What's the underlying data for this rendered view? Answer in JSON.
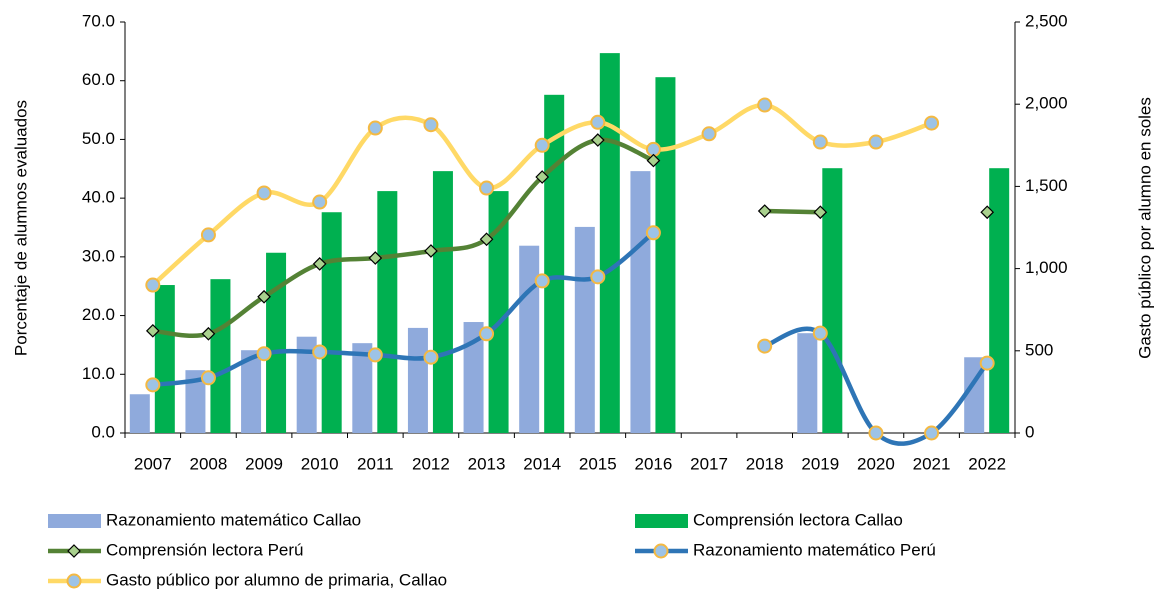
{
  "chart_data": {
    "type": "combo",
    "y_label": "Porcentaje de alumnos evaluados",
    "y2_label": "Gasto público por alumno en soles",
    "categories": [
      "2007",
      "2008",
      "2009",
      "2010",
      "2011",
      "2012",
      "2013",
      "2014",
      "2015",
      "2016",
      "2017",
      "2018",
      "2019",
      "2020",
      "2021",
      "2022"
    ],
    "ylim": [
      0,
      70
    ],
    "yticks": [
      {
        "value": 0,
        "label": "0.0"
      },
      {
        "value": 10,
        "label": "10.0"
      },
      {
        "value": 20,
        "label": "20.0"
      },
      {
        "value": 30,
        "label": "30.0"
      },
      {
        "value": 40,
        "label": "40.0"
      },
      {
        "value": 50,
        "label": "50.0"
      },
      {
        "value": 60,
        "label": "60.0"
      },
      {
        "value": 70,
        "label": "70.0"
      }
    ],
    "y2lim": [
      0,
      2500
    ],
    "y2ticks": [
      0,
      500,
      {
        "value": 1000,
        "label": "1,000"
      },
      {
        "value": 1500,
        "label": "1,500"
      },
      {
        "value": 2000,
        "label": "2,000"
      },
      {
        "value": 2500,
        "label": "2,500"
      }
    ],
    "series": [
      {
        "name": "Razonamiento matemático Callao",
        "kind": "bar",
        "color": "#8faadc",
        "values": [
          6.6,
          10.7,
          14.1,
          16.4,
          15.3,
          17.9,
          18.9,
          31.9,
          35.1,
          44.6,
          null,
          null,
          17.0,
          null,
          null,
          12.9
        ]
      },
      {
        "name": "Comprensión lectora Callao",
        "kind": "bar",
        "color": "#00b050",
        "values": [
          25.2,
          26.2,
          30.7,
          37.6,
          41.2,
          44.6,
          41.2,
          57.6,
          64.7,
          60.6,
          null,
          null,
          45.1,
          null,
          null,
          45.1
        ]
      },
      {
        "name": "Comprensión lectora Perú",
        "kind": "line",
        "marker": "diamond",
        "color": "#548235",
        "marker_color": "#a9d18e",
        "marker_edge": "#000000",
        "values": [
          17.4,
          16.9,
          23.2,
          28.8,
          29.8,
          31.0,
          33.0,
          43.6,
          49.9,
          46.4,
          null,
          37.8,
          37.6,
          null,
          null,
          37.6
        ]
      },
      {
        "name": "Razonamiento matemático Perú",
        "kind": "line",
        "marker": "circle",
        "color": "#2e75b6",
        "marker_color": "#9dc3e6",
        "marker_edge": "#f4b942",
        "values": [
          8.2,
          9.4,
          13.5,
          13.8,
          13.3,
          12.9,
          16.9,
          25.9,
          26.6,
          34.1,
          null,
          14.8,
          17.0,
          0,
          0,
          11.9
        ]
      },
      {
        "name": "Gasto público por alumno de primaria, Callao",
        "kind": "line",
        "axis": "y2",
        "marker": "circle",
        "color": "#ffd966",
        "marker_color": "#9dc3e6",
        "marker_edge": "#f4b942",
        "values": [
          900,
          1205,
          1460,
          1405,
          1855,
          1875,
          1490,
          1750,
          1890,
          1725,
          1820,
          1995,
          1770,
          1770,
          1885,
          null
        ]
      }
    ]
  }
}
